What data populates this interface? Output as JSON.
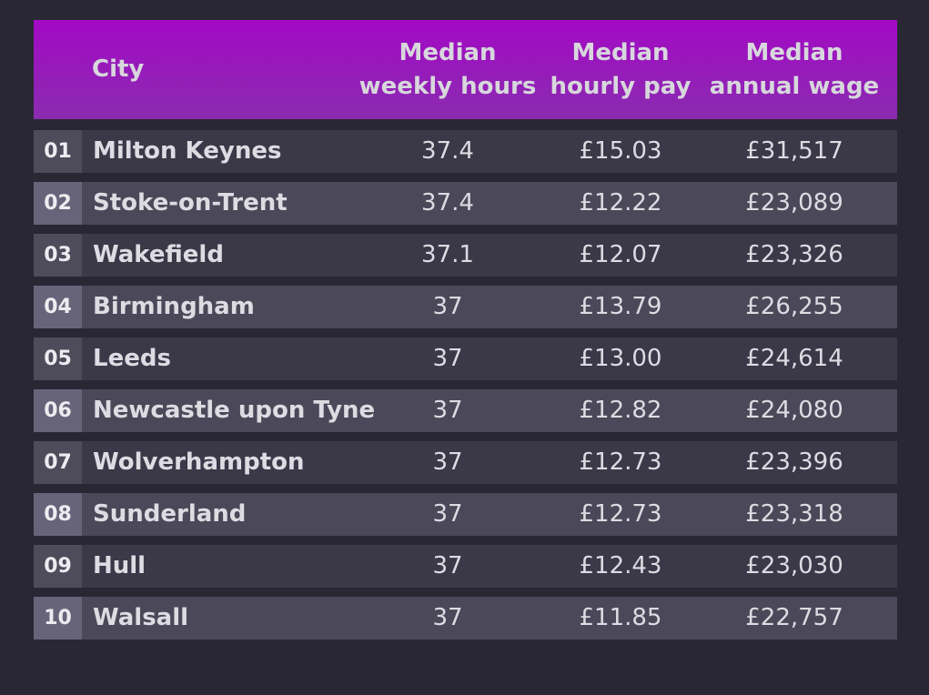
{
  "chart_data": {
    "type": "table",
    "columns": [
      "City",
      "Median weekly hours",
      "Median hourly pay",
      "Median annual wage"
    ],
    "header": {
      "city": "City",
      "hours": [
        "Median",
        "weekly hours"
      ],
      "pay": [
        "Median",
        "hourly pay"
      ],
      "wage": [
        "Median",
        "annual wage"
      ]
    },
    "rows": [
      {
        "rank": "01",
        "city": "Milton Keynes",
        "hours": "37.4",
        "pay": "£15.03",
        "wage": "£31,517"
      },
      {
        "rank": "02",
        "city": "Stoke-on-Trent",
        "hours": "37.4",
        "pay": "£12.22",
        "wage": "£23,089"
      },
      {
        "rank": "03",
        "city": "Wakefield",
        "hours": "37.1",
        "pay": "£12.07",
        "wage": "£23,326"
      },
      {
        "rank": "04",
        "city": "Birmingham",
        "hours": "37",
        "pay": "£13.79",
        "wage": "£26,255"
      },
      {
        "rank": "05",
        "city": "Leeds",
        "hours": "37",
        "pay": "£13.00",
        "wage": "£24,614"
      },
      {
        "rank": "06",
        "city": "Newcastle upon Tyne",
        "hours": "37",
        "pay": "£12.82",
        "wage": "£24,080"
      },
      {
        "rank": "07",
        "city": "Wolverhampton",
        "hours": "37",
        "pay": "£12.73",
        "wage": "£23,396"
      },
      {
        "rank": "08",
        "city": "Sunderland",
        "hours": "37",
        "pay": "£12.73",
        "wage": "£23,318"
      },
      {
        "rank": "09",
        "city": "Hull",
        "hours": "37",
        "pay": "£12.43",
        "wage": "£23,030"
      },
      {
        "rank": "10",
        "city": "Walsall",
        "hours": "37",
        "pay": "£11.85",
        "wage": "£22,757"
      }
    ]
  },
  "colors": {
    "background": "#2a2735",
    "header_gradient_top": "#a309c4",
    "header_gradient_bottom": "#8a2cb0",
    "row_odd": "#3b3848",
    "row_even": "#4b4859",
    "text": "#dcdce2"
  }
}
